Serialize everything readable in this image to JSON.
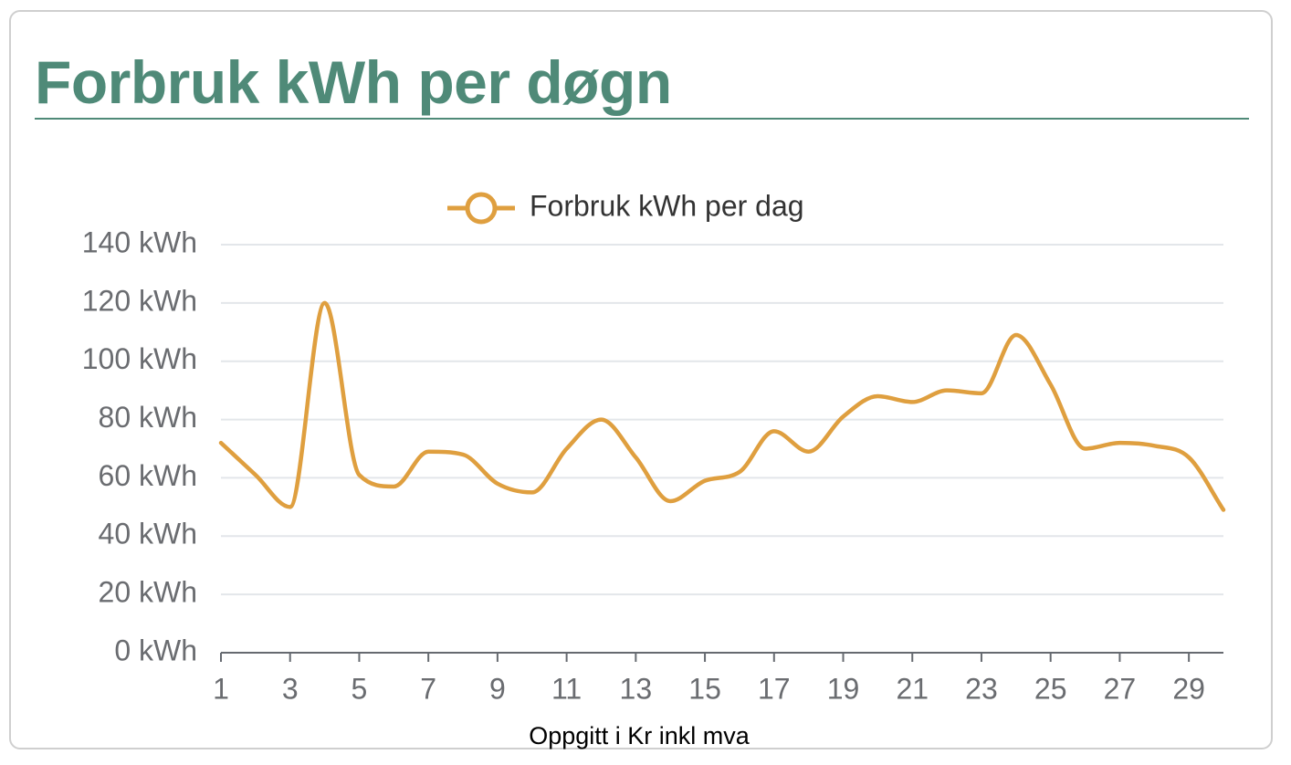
{
  "card": {
    "title": "Forbruk kWh per døgn"
  },
  "colors": {
    "accent": "#4f8a78",
    "series": "#df9f3f",
    "grid": "#e3e6ea",
    "axis": "#666a70",
    "tick_text": "#6a6c70"
  },
  "chart_data": {
    "type": "line",
    "smooth": true,
    "legend": {
      "position": "top",
      "marker": "circle"
    },
    "grid": true,
    "x": [
      1,
      2,
      3,
      4,
      5,
      6,
      7,
      8,
      9,
      10,
      11,
      12,
      13,
      14,
      15,
      16,
      17,
      18,
      19,
      20,
      21,
      22,
      23,
      24,
      25,
      26,
      27,
      28,
      29,
      30
    ],
    "x_tick_labels": [
      "1",
      "3",
      "5",
      "7",
      "9",
      "11",
      "13",
      "15",
      "17",
      "19",
      "21",
      "23",
      "25",
      "27",
      "29"
    ],
    "series": [
      {
        "name": "Forbruk kWh per dag",
        "values": [
          72,
          61,
          50,
          120,
          61,
          57,
          69,
          68,
          58,
          55,
          70,
          80,
          67,
          52,
          59,
          62,
          76,
          69,
          81,
          88,
          86,
          90,
          89,
          109,
          92,
          70,
          72,
          71,
          67,
          49
        ]
      }
    ],
    "ylim": [
      0,
      140
    ],
    "y_ticks": [
      0,
      20,
      40,
      60,
      80,
      100,
      120,
      140
    ],
    "y_tick_labels": [
      "0 kWh",
      "20 kWh",
      "40 kWh",
      "60 kWh",
      "80 kWh",
      "100 kWh",
      "120 kWh",
      "140 kWh"
    ],
    "x_caption": "Oppgitt i Kr inkl mva"
  }
}
